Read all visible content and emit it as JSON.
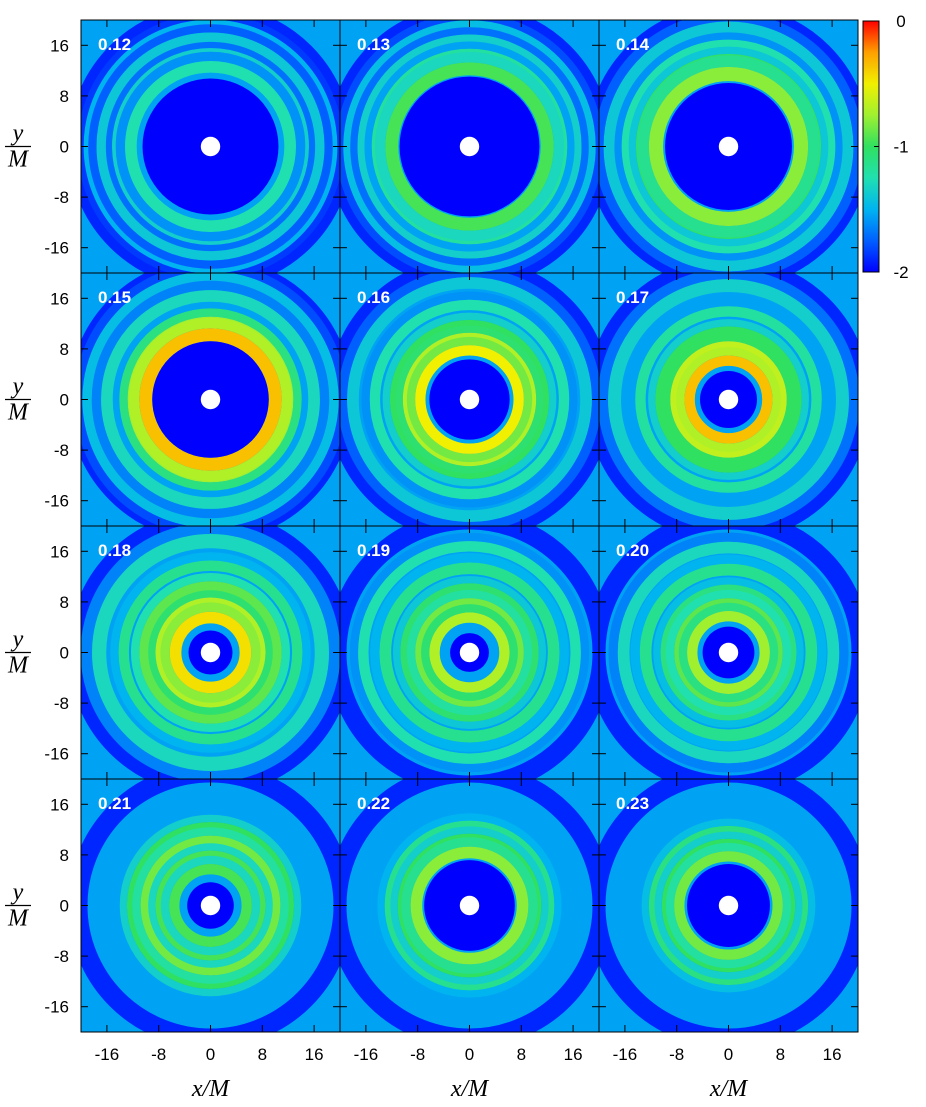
{
  "chart_data": {
    "type": "heatmap",
    "colormap": [
      "#0000ff",
      "#0060ff",
      "#00b4f0",
      "#20e0b0",
      "#30e060",
      "#a0f030",
      "#f0f000",
      "#ffa000",
      "#ff0000"
    ],
    "background_color": "#0000ff",
    "hole_color": "#ffffff",
    "xlabel": "x/M",
    "ylabel_num": "y",
    "ylabel_den": "M",
    "xticks": [
      -16,
      -8,
      0,
      8,
      16
    ],
    "yticks": [
      16,
      8,
      0,
      -8,
      -16
    ],
    "xlim": [
      -20,
      20
    ],
    "ylim": [
      -20,
      20
    ],
    "colorbar": {
      "ticks": [
        0,
        -1,
        -2
      ],
      "range": [
        -2,
        0
      ]
    },
    "hole_radius": 1.5,
    "panels": [
      {
        "label": "0.12",
        "inner_blue_radius": 10.5,
        "rings": [
          {
            "r": 12.3,
            "w": 1.8,
            "v": -1.25
          },
          {
            "r": 14.6,
            "w": 1.2,
            "v": -1.35
          },
          {
            "r": 16.8,
            "w": 1.6,
            "v": -1.4
          },
          {
            "r": 19.0,
            "w": 1.2,
            "v": -1.5
          }
        ]
      },
      {
        "label": "0.13",
        "inner_blue_radius": 10.8,
        "rings": [
          {
            "r": 12.0,
            "w": 2.0,
            "v": -0.95
          },
          {
            "r": 14.4,
            "w": 1.4,
            "v": -1.2
          },
          {
            "r": 16.6,
            "w": 1.4,
            "v": -1.35
          },
          {
            "r": 18.8,
            "w": 1.4,
            "v": -1.45
          }
        ]
      },
      {
        "label": "0.14",
        "inner_blue_radius": 9.8,
        "rings": [
          {
            "r": 11.2,
            "w": 2.2,
            "v": -0.8
          },
          {
            "r": 13.6,
            "w": 1.4,
            "v": -1.05
          },
          {
            "r": 15.8,
            "w": 1.4,
            "v": -1.25
          },
          {
            "r": 18.4,
            "w": 1.8,
            "v": -1.4
          }
        ]
      },
      {
        "label": "0.15",
        "inner_blue_radius": 9.0,
        "rings": [
          {
            "r": 10.0,
            "w": 2.0,
            "v": -0.35
          },
          {
            "r": 12.0,
            "w": 1.6,
            "v": -0.75
          },
          {
            "r": 16.0,
            "w": 1.8,
            "v": -1.3
          },
          {
            "r": 19.0,
            "w": 1.6,
            "v": -1.45
          }
        ]
      },
      {
        "label": "0.16",
        "inner_blue_radius": 6.2,
        "rings": [
          {
            "r": 7.6,
            "w": 1.6,
            "v": -0.5
          },
          {
            "r": 9.6,
            "w": 1.4,
            "v": -0.7
          },
          {
            "r": 11.6,
            "w": 1.4,
            "v": -1.0
          },
          {
            "r": 14.6,
            "w": 1.6,
            "v": -1.25
          },
          {
            "r": 18.0,
            "w": 1.8,
            "v": -1.4
          }
        ]
      },
      {
        "label": "0.17",
        "inner_blue_radius": 4.4,
        "rings": [
          {
            "r": 6.0,
            "w": 1.6,
            "v": -0.35
          },
          {
            "r": 8.2,
            "w": 1.6,
            "v": -0.65
          },
          {
            "r": 10.6,
            "w": 1.4,
            "v": -1.0
          },
          {
            "r": 13.6,
            "w": 1.6,
            "v": -1.2
          },
          {
            "r": 17.6,
            "w": 2.0,
            "v": -1.35
          }
        ]
      },
      {
        "label": "0.18",
        "inner_blue_radius": 3.4,
        "rings": [
          {
            "r": 5.4,
            "w": 1.8,
            "v": -0.45
          },
          {
            "r": 7.8,
            "w": 1.4,
            "v": -0.7
          },
          {
            "r": 10.2,
            "w": 1.6,
            "v": -0.9
          },
          {
            "r": 13.4,
            "w": 1.6,
            "v": -1.15
          },
          {
            "r": 17.2,
            "w": 2.2,
            "v": -1.3
          }
        ]
      },
      {
        "label": "0.19",
        "inner_blue_radius": 3.0,
        "rings": [
          {
            "r": 5.4,
            "w": 1.6,
            "v": -0.7
          },
          {
            "r": 7.6,
            "w": 1.6,
            "v": -0.85
          },
          {
            "r": 10.0,
            "w": 1.4,
            "v": -1.05
          },
          {
            "r": 13.0,
            "w": 1.8,
            "v": -1.15
          },
          {
            "r": 16.4,
            "w": 1.6,
            "v": -1.25
          }
        ]
      },
      {
        "label": "0.20",
        "inner_blue_radius": 4.0,
        "rings": [
          {
            "r": 5.6,
            "w": 1.6,
            "v": -0.75
          },
          {
            "r": 7.6,
            "w": 1.6,
            "v": -0.9
          },
          {
            "r": 9.8,
            "w": 1.4,
            "v": -1.1
          },
          {
            "r": 12.8,
            "w": 1.8,
            "v": -1.15
          },
          {
            "r": 16.2,
            "w": 1.8,
            "v": -1.3
          }
        ]
      },
      {
        "label": "0.21",
        "inner_blue_radius": 3.6,
        "rings": [
          {
            "r": 5.6,
            "w": 1.6,
            "v": -0.95
          },
          {
            "r": 7.8,
            "w": 1.4,
            "v": -0.95
          },
          {
            "r": 10.0,
            "w": 1.6,
            "v": -0.85
          },
          {
            "r": 12.2,
            "w": 1.4,
            "v": -1.0
          }
        ]
      },
      {
        "label": "0.22",
        "inner_blue_radius": 7.0,
        "rings": [
          {
            "r": 8.2,
            "w": 1.8,
            "v": -0.8
          },
          {
            "r": 10.4,
            "w": 1.4,
            "v": -1.0
          },
          {
            "r": 12.4,
            "w": 1.4,
            "v": -1.15
          }
        ]
      },
      {
        "label": "0.23",
        "inner_blue_radius": 6.4,
        "rings": [
          {
            "r": 7.6,
            "w": 1.6,
            "v": -0.85
          },
          {
            "r": 9.6,
            "w": 1.4,
            "v": -1.0
          },
          {
            "r": 11.6,
            "w": 1.4,
            "v": -1.1
          }
        ]
      }
    ]
  }
}
